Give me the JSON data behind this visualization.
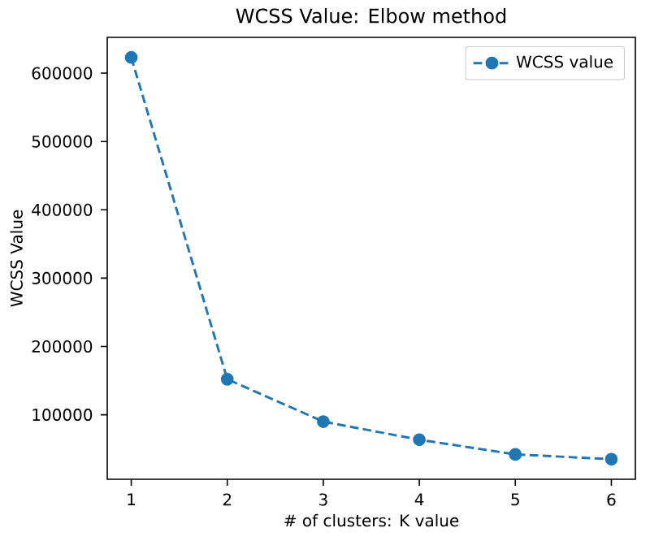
{
  "chart_data": {
    "type": "line",
    "title": "WCSS Value: Elbow method",
    "xlabel": "# of clusters: K value",
    "ylabel": "WCSS Value",
    "x": [
      1,
      2,
      3,
      4,
      5,
      6
    ],
    "series": [
      {
        "name": "WCSS value",
        "color": "#1f77b4",
        "values": [
          623000,
          152000,
          90000,
          63500,
          42000,
          35000
        ]
      }
    ],
    "xlim": [
      0.75,
      6.25
    ],
    "ylim": [
      5600,
      652400
    ],
    "xticks": [
      1,
      2,
      3,
      4,
      5,
      6
    ],
    "yticks": [
      100000,
      200000,
      300000,
      400000,
      500000,
      600000
    ],
    "legend": "top right",
    "marker": "circle",
    "line_style": "dashed",
    "grid": false
  }
}
